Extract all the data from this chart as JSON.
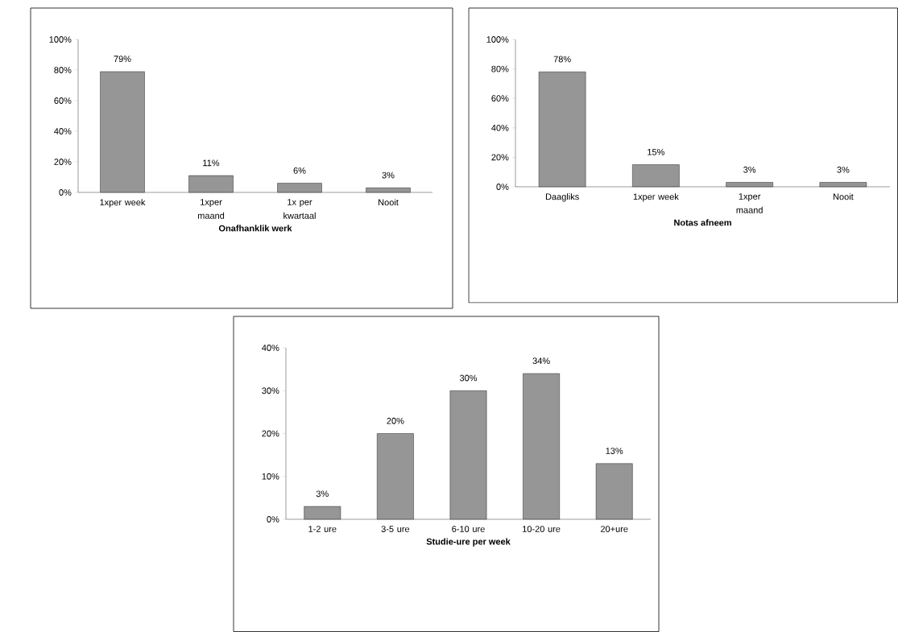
{
  "chart_data": [
    {
      "type": "bar",
      "xlabel": "Onafhanklik werk",
      "categories": [
        "1xper week",
        "1xper maand",
        "1x per kwartaal",
        "Nooit"
      ],
      "values": [
        79,
        11,
        6,
        3
      ],
      "value_labels": [
        "79%",
        "11%",
        "6%",
        "3%"
      ],
      "color": "#969696",
      "ylim": [
        0,
        100
      ],
      "yticks": [
        {
          "value": 0,
          "label": "0%"
        },
        {
          "value": 20,
          "label": "20%"
        },
        {
          "value": 40,
          "label": "40%"
        },
        {
          "value": 60,
          "label": "60%"
        },
        {
          "value": 80,
          "label": "80%"
        },
        {
          "value": 100,
          "label": "100%"
        }
      ]
    },
    {
      "type": "bar",
      "xlabel": "Notas afneem",
      "categories": [
        "Daagliks",
        "1xper week",
        "1xper maand",
        "Nooit"
      ],
      "values": [
        78,
        15,
        3,
        3
      ],
      "value_labels": [
        "78%",
        "15%",
        "3%",
        "3%"
      ],
      "color": "#969696",
      "ylim": [
        0,
        100
      ],
      "yticks": [
        {
          "value": 0,
          "label": "0%"
        },
        {
          "value": 20,
          "label": "20%"
        },
        {
          "value": 40,
          "label": "40%"
        },
        {
          "value": 60,
          "label": "60%"
        },
        {
          "value": 80,
          "label": "80%"
        },
        {
          "value": 100,
          "label": "100%"
        }
      ]
    },
    {
      "type": "bar",
      "xlabel": "Studie-ure per week",
      "categories": [
        "1-2 ure",
        "3-5 ure",
        "6-10 ure",
        "10-20 ure",
        "20+ure"
      ],
      "values": [
        3,
        20,
        30,
        34,
        13
      ],
      "value_labels": [
        "3%",
        "20%",
        "30%",
        "34%",
        "13%"
      ],
      "color": "#969696",
      "ylim": [
        0,
        40
      ],
      "yticks": [
        {
          "value": 0,
          "label": "0%"
        },
        {
          "value": 10,
          "label": "10%"
        },
        {
          "value": 20,
          "label": "20%"
        },
        {
          "value": 30,
          "label": "30%"
        },
        {
          "value": 40,
          "label": "40%"
        }
      ]
    }
  ]
}
